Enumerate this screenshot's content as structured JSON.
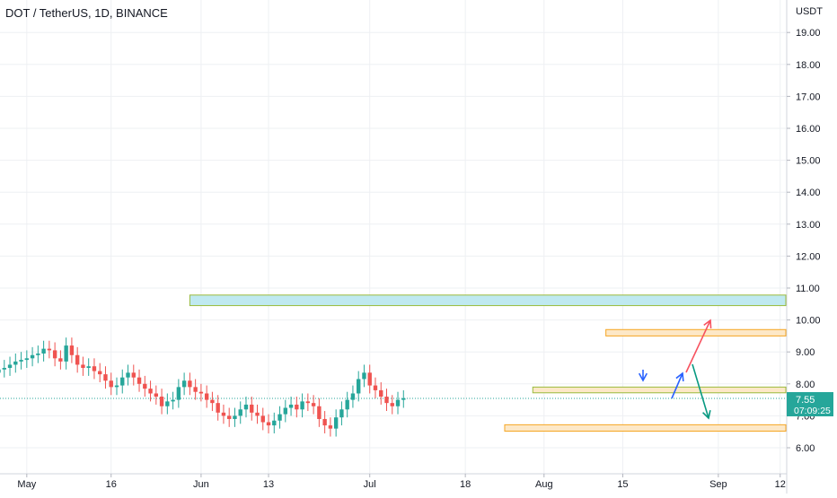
{
  "header": {
    "symbol_title": "DOT / TetherUS, 1D, BINANCE"
  },
  "price_axis": {
    "currency": "USDT"
  },
  "last_price": {
    "value": "7.55",
    "countdown": "07:09:25"
  },
  "colors": {
    "up": "#26a69a",
    "down": "#ef5350",
    "grid": "#eef0f3",
    "zone_fill_blue": "#bfe9f0",
    "zone_fill_orange": "#fde8c7",
    "zone_border_green": "#9aba3c",
    "zone_border_orange": "#f5a623",
    "arrow_red": "#f7525f",
    "arrow_green": "#089981",
    "arrow_blue": "#2962ff",
    "label_bg": "#26a69a"
  },
  "chart_data": {
    "type": "candlestick",
    "ylim": [
      5.6,
      20.0
    ],
    "yticks": [
      6.0,
      7.0,
      8.0,
      9.0,
      10.0,
      11.0,
      12.0,
      13.0,
      14.0,
      15.0,
      16.0,
      17.0,
      18.0,
      19.0
    ],
    "xlim": [
      "2021-04-24",
      "2021-09-13"
    ],
    "xticks": [
      {
        "date": "2021-05-01",
        "label": "May"
      },
      {
        "date": "2021-05-16",
        "label": "16"
      },
      {
        "date": "2021-06-01",
        "label": "Jun"
      },
      {
        "date": "2021-06-13",
        "label": "13"
      },
      {
        "date": "2021-07-01",
        "label": "Jul"
      },
      {
        "date": "2021-07-18",
        "label": "18"
      },
      {
        "date": "2021-08-01",
        "label": "Aug"
      },
      {
        "date": "2021-08-15",
        "label": "15"
      },
      {
        "date": "2021-09-01",
        "label": "Sep"
      },
      {
        "date": "2021-09-12",
        "label": "12"
      }
    ],
    "start_date": "2021-04-25",
    "close": [
      8.35,
      8.45,
      8.5,
      8.6,
      8.7,
      8.75,
      8.8,
      8.9,
      8.95,
      9.1,
      9.05,
      8.8,
      8.7,
      9.2,
      8.9,
      8.6,
      8.5,
      8.55,
      8.4,
      8.3,
      8.1,
      7.9,
      7.95,
      8.2,
      8.35,
      8.2,
      8.0,
      7.85,
      7.7,
      7.6,
      7.3,
      7.45,
      7.5,
      7.9,
      8.1,
      7.9,
      7.75,
      7.7,
      7.5,
      7.4,
      7.1,
      7.0,
      6.9,
      7.0,
      7.2,
      7.35,
      7.1,
      7.0,
      6.8,
      6.7,
      6.85,
      7.05,
      7.25,
      7.35,
      7.2,
      7.45,
      7.4,
      7.3,
      6.9,
      6.7,
      6.6,
      6.95,
      7.2,
      7.5,
      7.7,
      8.15,
      8.35,
      7.95,
      7.8,
      7.6,
      7.4,
      7.3,
      7.5,
      7.55
    ],
    "annotations": {
      "resistance_zone_upper": {
        "from": "2021-05-30",
        "to": "2021-09-13",
        "low": 10.45,
        "high": 10.78
      },
      "resistance_zone_mid": {
        "from": "2021-08-12",
        "to": "2021-09-13",
        "low": 9.5,
        "high": 9.7
      },
      "support_zone_mid": {
        "from": "2021-07-30",
        "to": "2021-09-13",
        "low": 7.72,
        "high": 7.9
      },
      "support_zone_low": {
        "from": "2021-07-25",
        "to": "2021-09-13",
        "low": 6.52,
        "high": 6.72
      }
    }
  }
}
